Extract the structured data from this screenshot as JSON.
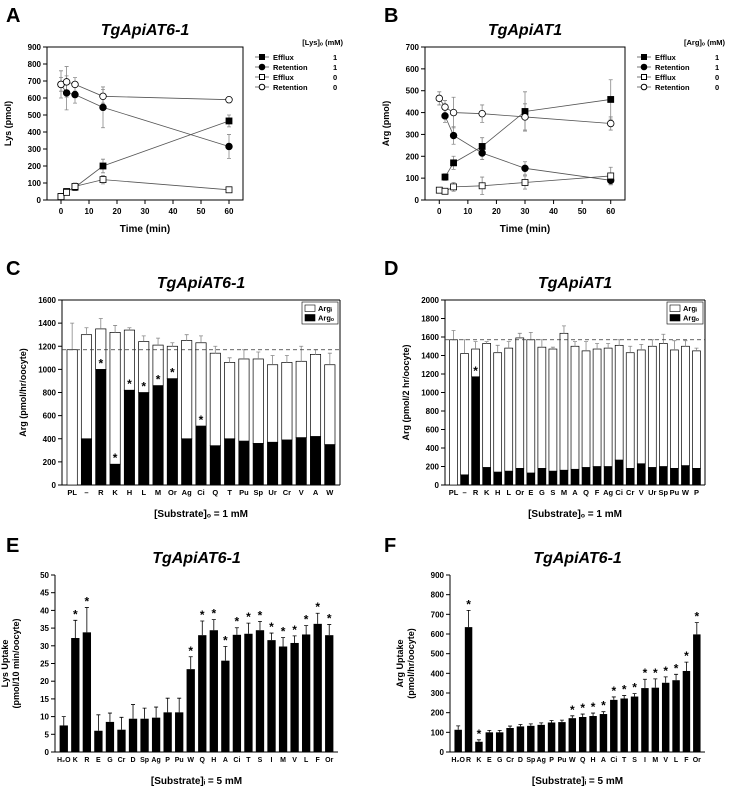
{
  "chart_data": [
    {
      "type": "line",
      "panel": "A",
      "title": "TgApiAT6-1",
      "xlabel": "Time (min)",
      "ylabel": [
        "Lys (pmol)"
      ],
      "x": [
        0,
        2,
        5,
        15,
        60
      ],
      "xlim": [
        -5,
        65
      ],
      "xticks": [
        0,
        10,
        20,
        30,
        40,
        50,
        60
      ],
      "ylim": [
        0,
        900
      ],
      "yticks": [
        0,
        100,
        200,
        300,
        400,
        500,
        600,
        700,
        800,
        900
      ],
      "legend": "outside right",
      "legend_title": "[Lys]ₒ (mM)",
      "series": [
        {
          "name": "Efflux",
          "legend_value": "1",
          "color": "#000000",
          "marker": "square",
          "filled": true,
          "values": [
            20,
            50,
            75,
            200,
            465
          ],
          "errors": [
            10,
            15,
            20,
            40,
            35
          ]
        },
        {
          "name": "Retention",
          "legend_value": "1",
          "color": "#000000",
          "marker": "circle",
          "filled": true,
          "values": [
            680,
            630,
            620,
            545,
            315
          ],
          "errors": [
            80,
            100,
            50,
            120,
            70
          ]
        },
        {
          "name": "Efflux",
          "legend_value": "0",
          "color": "#000000",
          "marker": "square",
          "filled": false,
          "values": [
            20,
            45,
            80,
            120,
            60
          ],
          "errors": [
            10,
            15,
            20,
            25,
            15
          ]
        },
        {
          "name": "Retention",
          "legend_value": "0",
          "color": "#000000",
          "marker": "circle",
          "filled": false,
          "values": [
            680,
            695,
            680,
            610,
            590
          ],
          "errors": [
            40,
            90,
            40,
            40,
            15
          ]
        }
      ]
    },
    {
      "type": "line",
      "panel": "B",
      "title": "TgApiAT1",
      "xlabel": "Time (min)",
      "ylabel": [
        "Arg (pmol)"
      ],
      "x": [
        0,
        2,
        5,
        15,
        30,
        60
      ],
      "xlim": [
        -5,
        65
      ],
      "xticks": [
        0,
        10,
        20,
        30,
        40,
        50,
        60
      ],
      "ylim": [
        0,
        700
      ],
      "yticks": [
        0,
        100,
        200,
        300,
        400,
        500,
        600,
        700
      ],
      "legend": "outside right",
      "legend_title": "[Arg]ₒ (mM)",
      "series": [
        {
          "name": "Efflux",
          "legend_value": "1",
          "color": "#000000",
          "marker": "square",
          "filled": true,
          "values": [
            null,
            105,
            170,
            245,
            405,
            460
          ],
          "errors": [
            null,
            15,
            30,
            40,
            90,
            90
          ]
        },
        {
          "name": "Retention",
          "legend_value": "1",
          "color": "#000000",
          "marker": "circle",
          "filled": true,
          "values": [
            null,
            385,
            295,
            215,
            145,
            90
          ],
          "errors": [
            null,
            30,
            40,
            30,
            30,
            20
          ]
        },
        {
          "name": "Efflux",
          "legend_value": "0",
          "color": "#000000",
          "marker": "square",
          "filled": false,
          "values": [
            45,
            40,
            60,
            65,
            80,
            110
          ],
          "errors": [
            10,
            10,
            20,
            40,
            30,
            40
          ]
        },
        {
          "name": "Retention",
          "legend_value": "0",
          "color": "#000000",
          "marker": "circle",
          "filled": false,
          "values": [
            465,
            425,
            400,
            395,
            380,
            350
          ],
          "errors": [
            30,
            30,
            70,
            40,
            60,
            30
          ]
        }
      ]
    },
    {
      "type": "stacked_bar",
      "panel": "C",
      "title": "TgApiAT6-1",
      "xlabel": "[Substrate]ₒ = 1 mM",
      "ylabel": [
        "Arg (pmol/hr/oocyte)"
      ],
      "categories": [
        "PL",
        "–",
        "R",
        "K",
        "H",
        "L",
        "M",
        "Or",
        "Ag",
        "Ci",
        "Q",
        "T",
        "Pu",
        "Sp",
        "Ur",
        "Cr",
        "V",
        "A",
        "W"
      ],
      "ylim": [
        0,
        1600
      ],
      "yticks": [
        0,
        200,
        400,
        600,
        800,
        1000,
        1200,
        1400,
        1600
      ],
      "ref_line": 1170,
      "legend": "upper right",
      "series": [
        {
          "name": "Argₒ",
          "color": "#000000",
          "values": [
            null,
            400,
            1000,
            180,
            820,
            800,
            860,
            920,
            400,
            510,
            340,
            400,
            380,
            360,
            370,
            390,
            410,
            420,
            350
          ]
        },
        {
          "name": "Argᵢ",
          "color": "#ffffff",
          "values": [
            1170,
            900,
            350,
            1140,
            520,
            440,
            350,
            280,
            850,
            720,
            800,
            660,
            710,
            730,
            670,
            670,
            660,
            710,
            690
          ],
          "errors": [
            230,
            60,
            90,
            60,
            20,
            50,
            60,
            30,
            50,
            60,
            60,
            40,
            80,
            60,
            80,
            60,
            130,
            40,
            100
          ]
        }
      ],
      "star_labels": [
        null,
        null,
        "*",
        "*",
        "*",
        "*",
        "*",
        "*",
        null,
        "*",
        null,
        null,
        null,
        null,
        null,
        null,
        null,
        null,
        null
      ]
    },
    {
      "type": "stacked_bar",
      "panel": "D",
      "title": "TgApiAT1",
      "xlabel": "[Substrate]ₒ = 1 mM",
      "ylabel": [
        "Arg (pmol/2 hr/oocyte)"
      ],
      "categories": [
        "PL",
        "–",
        "R",
        "K",
        "H",
        "L",
        "Or",
        "E",
        "G",
        "S",
        "M",
        "A",
        "Q",
        "F",
        "Ag",
        "Ci",
        "Cr",
        "V",
        "Ur",
        "Sp",
        "Pu",
        "W",
        "P"
      ],
      "ylim": [
        0,
        2000
      ],
      "yticks": [
        0,
        200,
        400,
        600,
        800,
        1000,
        1200,
        1400,
        1600,
        1800,
        2000
      ],
      "ref_line": 1570,
      "legend": "upper right",
      "series": [
        {
          "name": "Argₒ",
          "color": "#000000",
          "values": [
            null,
            110,
            1170,
            190,
            140,
            150,
            180,
            130,
            180,
            150,
            160,
            170,
            190,
            200,
            200,
            270,
            180,
            230,
            190,
            200,
            180,
            210,
            180
          ]
        },
        {
          "name": "Argᵢ",
          "color": "#ffffff",
          "values": [
            1570,
            1310,
            300,
            1340,
            1290,
            1330,
            1410,
            1440,
            1310,
            1320,
            1480,
            1330,
            1260,
            1270,
            1280,
            1240,
            1250,
            1230,
            1310,
            1330,
            1280,
            1290,
            1270
          ],
          "errors": [
            100,
            150,
            80,
            20,
            80,
            70,
            50,
            80,
            80,
            20,
            80,
            50,
            100,
            60,
            50,
            60,
            70,
            60,
            70,
            100,
            100,
            60,
            30
          ]
        }
      ],
      "star_labels": [
        null,
        null,
        "*",
        null,
        null,
        null,
        null,
        null,
        null,
        null,
        null,
        null,
        null,
        null,
        null,
        null,
        null,
        null,
        null,
        null,
        null,
        null,
        null
      ]
    },
    {
      "type": "bar",
      "panel": "E",
      "title": "TgApiAT6-1",
      "xlabel": "[Substrate]ᵢ = 5 mM",
      "ylabel": [
        "Lys Uptake",
        "(pmol/10 min/oocyte)"
      ],
      "categories": [
        "H₂O",
        "K",
        "R",
        "E",
        "G",
        "Cr",
        "D",
        "Sp",
        "Ag",
        "P",
        "Pu",
        "W",
        "Q",
        "H",
        "A",
        "Ci",
        "T",
        "S",
        "I",
        "M",
        "V",
        "L",
        "F",
        "Or"
      ],
      "ylim": [
        0,
        50
      ],
      "yticks": [
        0,
        5,
        10,
        15,
        20,
        25,
        30,
        35,
        40,
        45,
        50
      ],
      "color": "#000000",
      "values": [
        7.5,
        32.2,
        33.8,
        6,
        8.5,
        6.3,
        9.4,
        9.4,
        9.7,
        11.2,
        11.2,
        23.4,
        33,
        34.4,
        25.8,
        33.1,
        33.4,
        34.4,
        31.6,
        29.8,
        30.8,
        33.2,
        36.2,
        33
      ],
      "errors": [
        2.5,
        5,
        7,
        4.5,
        2.5,
        3.5,
        4,
        3,
        3,
        4,
        4,
        3.5,
        4,
        3,
        4,
        2,
        3,
        2.5,
        2,
        2.5,
        2,
        2.5,
        3,
        3
      ],
      "star_labels": [
        null,
        "*",
        "*",
        null,
        null,
        null,
        null,
        null,
        null,
        null,
        null,
        "*",
        "*",
        "*",
        "*",
        "*",
        "*",
        "*",
        "*",
        "*",
        "*",
        "*",
        "*",
        "*"
      ]
    },
    {
      "type": "bar",
      "panel": "F",
      "title": "TgApiAT6-1",
      "xlabel": "[Substrate]ᵢ = 5 mM",
      "ylabel": [
        "Arg Uptake",
        "(pmol/hr/oocyte)"
      ],
      "categories": [
        "H₂O",
        "R",
        "K",
        "E",
        "G",
        "Cr",
        "D",
        "Sp",
        "Ag",
        "P",
        "Pu",
        "W",
        "Q",
        "H",
        "A",
        "Ci",
        "T",
        "S",
        "I",
        "M",
        "V",
        "L",
        "F",
        "Or"
      ],
      "ylim": [
        0,
        900
      ],
      "yticks": [
        0,
        100,
        200,
        300,
        400,
        500,
        600,
        700,
        800,
        900
      ],
      "color": "#000000",
      "values": [
        113,
        635,
        52,
        100,
        100,
        122,
        130,
        133,
        138,
        150,
        152,
        172,
        178,
        183,
        193,
        265,
        272,
        282,
        325,
        327,
        352,
        365,
        412,
        598
      ],
      "errors": [
        20,
        85,
        10,
        10,
        10,
        10,
        10,
        10,
        10,
        10,
        10,
        12,
        15,
        15,
        12,
        15,
        15,
        15,
        45,
        45,
        30,
        30,
        45,
        60
      ],
      "star_labels": [
        null,
        "*",
        "*",
        null,
        null,
        null,
        null,
        null,
        null,
        null,
        null,
        "*",
        "*",
        "*",
        "*",
        "*",
        "*",
        "*",
        "*",
        "*",
        "*",
        "*",
        "*",
        "*"
      ]
    }
  ]
}
